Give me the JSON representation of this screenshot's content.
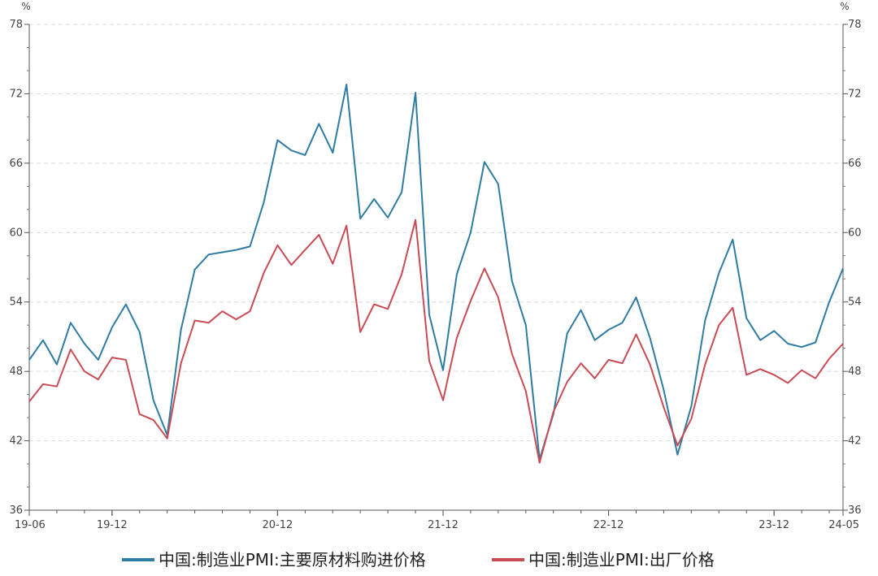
{
  "chart_data": {
    "type": "line",
    "y_unit_left": "%",
    "y_unit_right": "%",
    "ylim": [
      36,
      78
    ],
    "yticks": [
      36,
      42,
      48,
      54,
      60,
      66,
      72,
      78
    ],
    "y_tick_labels": [
      "36",
      "42",
      "48",
      "54",
      "60",
      "66",
      "72",
      "78"
    ],
    "x_tick_labels": [
      {
        "index": 0,
        "label": "19-06"
      },
      {
        "index": 6,
        "label": "19-12"
      },
      {
        "index": 18,
        "label": "20-12"
      },
      {
        "index": 30,
        "label": "21-12"
      },
      {
        "index": 42,
        "label": "22-12"
      },
      {
        "index": 54,
        "label": "23-12"
      },
      {
        "index": 59,
        "label": "24-05"
      }
    ],
    "x": [
      "19-06",
      "19-07",
      "19-08",
      "19-09",
      "19-10",
      "19-11",
      "19-12",
      "20-01",
      "20-02",
      "20-03",
      "20-04",
      "20-05",
      "20-06",
      "20-07",
      "20-08",
      "20-09",
      "20-10",
      "20-11",
      "20-12",
      "21-01",
      "21-02",
      "21-03",
      "21-04",
      "21-05",
      "21-06",
      "21-07",
      "21-08",
      "21-09",
      "21-10",
      "21-11",
      "21-12",
      "22-01",
      "22-02",
      "22-03",
      "22-04",
      "22-05",
      "22-06",
      "22-07",
      "22-08",
      "22-09",
      "22-10",
      "22-11",
      "22-12",
      "23-01",
      "23-02",
      "23-03",
      "23-04",
      "23-05",
      "23-06",
      "23-07",
      "23-08",
      "23-09",
      "23-10",
      "23-11",
      "23-12",
      "24-01",
      "24-02",
      "24-03",
      "24-04",
      "24-05"
    ],
    "series": [
      {
        "name": "中国:制造业PMI:主要原材料购进价格",
        "color": "#2e7ca3",
        "values": [
          49.0,
          50.7,
          48.6,
          52.2,
          50.4,
          49.0,
          51.8,
          53.8,
          51.4,
          45.5,
          42.5,
          51.6,
          56.8,
          58.1,
          58.3,
          58.5,
          58.8,
          62.6,
          68.0,
          67.1,
          66.7,
          69.4,
          66.9,
          72.8,
          61.2,
          62.9,
          61.3,
          63.5,
          72.1,
          52.9,
          48.1,
          56.4,
          60.0,
          66.1,
          64.2,
          55.8,
          52.0,
          40.4,
          44.3,
          51.3,
          53.3,
          50.7,
          51.6,
          52.2,
          54.4,
          50.9,
          46.4,
          40.8,
          45.0,
          52.4,
          56.5,
          59.4,
          52.6,
          50.7,
          51.5,
          50.4,
          50.1,
          50.5,
          54.0,
          56.9
        ]
      },
      {
        "name": "中国:制造业PMI:出厂价格",
        "color": "#c84b55",
        "values": [
          45.4,
          46.9,
          46.7,
          49.9,
          48.0,
          47.3,
          49.2,
          49.0,
          44.3,
          43.8,
          42.2,
          48.7,
          52.4,
          52.2,
          53.2,
          52.5,
          53.2,
          56.5,
          58.9,
          57.2,
          58.5,
          59.8,
          57.3,
          60.6,
          51.4,
          53.8,
          53.4,
          56.4,
          61.1,
          48.9,
          45.5,
          50.9,
          54.1,
          56.9,
          54.4,
          49.5,
          46.3,
          40.1,
          44.5,
          47.1,
          48.7,
          47.4,
          49.0,
          48.7,
          51.2,
          48.6,
          44.9,
          41.6,
          43.9,
          48.6,
          52.0,
          53.5,
          47.7,
          48.2,
          47.7,
          47.0,
          48.1,
          47.4,
          49.1,
          50.4
        ]
      }
    ],
    "grid": true,
    "legend": "bottom-center"
  }
}
